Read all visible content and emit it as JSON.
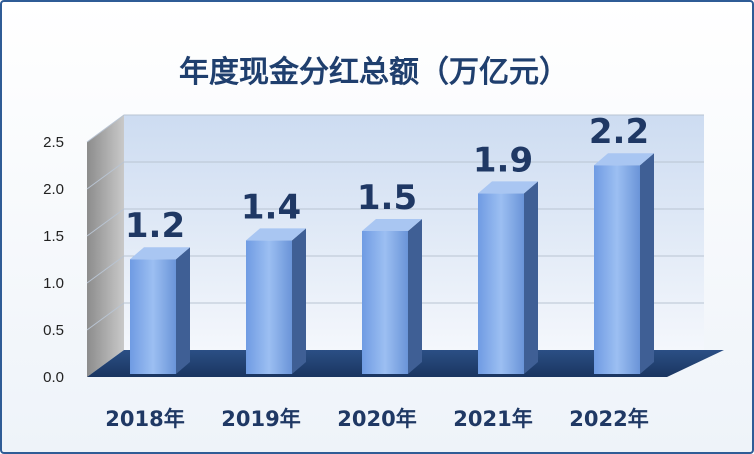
{
  "chart_data": {
    "type": "bar",
    "title": "年度现金分红总额（万亿元）",
    "categories": [
      "2018年",
      "2019年",
      "2020年",
      "2021年",
      "2022年"
    ],
    "values": [
      1.2,
      1.4,
      1.5,
      1.9,
      2.2
    ],
    "data_labels": [
      "1.2",
      "1.4",
      "1.5",
      "1.9",
      "2.2"
    ],
    "y_ticks": [
      "0.0",
      "0.5",
      "1.0",
      "1.5",
      "2.0",
      "2.5"
    ],
    "ylim": [
      0,
      2.5
    ],
    "grid": true,
    "legend": "none",
    "style": "3d-columns",
    "colors": {
      "bar": "#7fa8ea",
      "bar_top": "#a9c6f2",
      "bar_side": "#3f5f95",
      "floor": "#1f3f6e",
      "title": "#1f3f6e"
    }
  }
}
